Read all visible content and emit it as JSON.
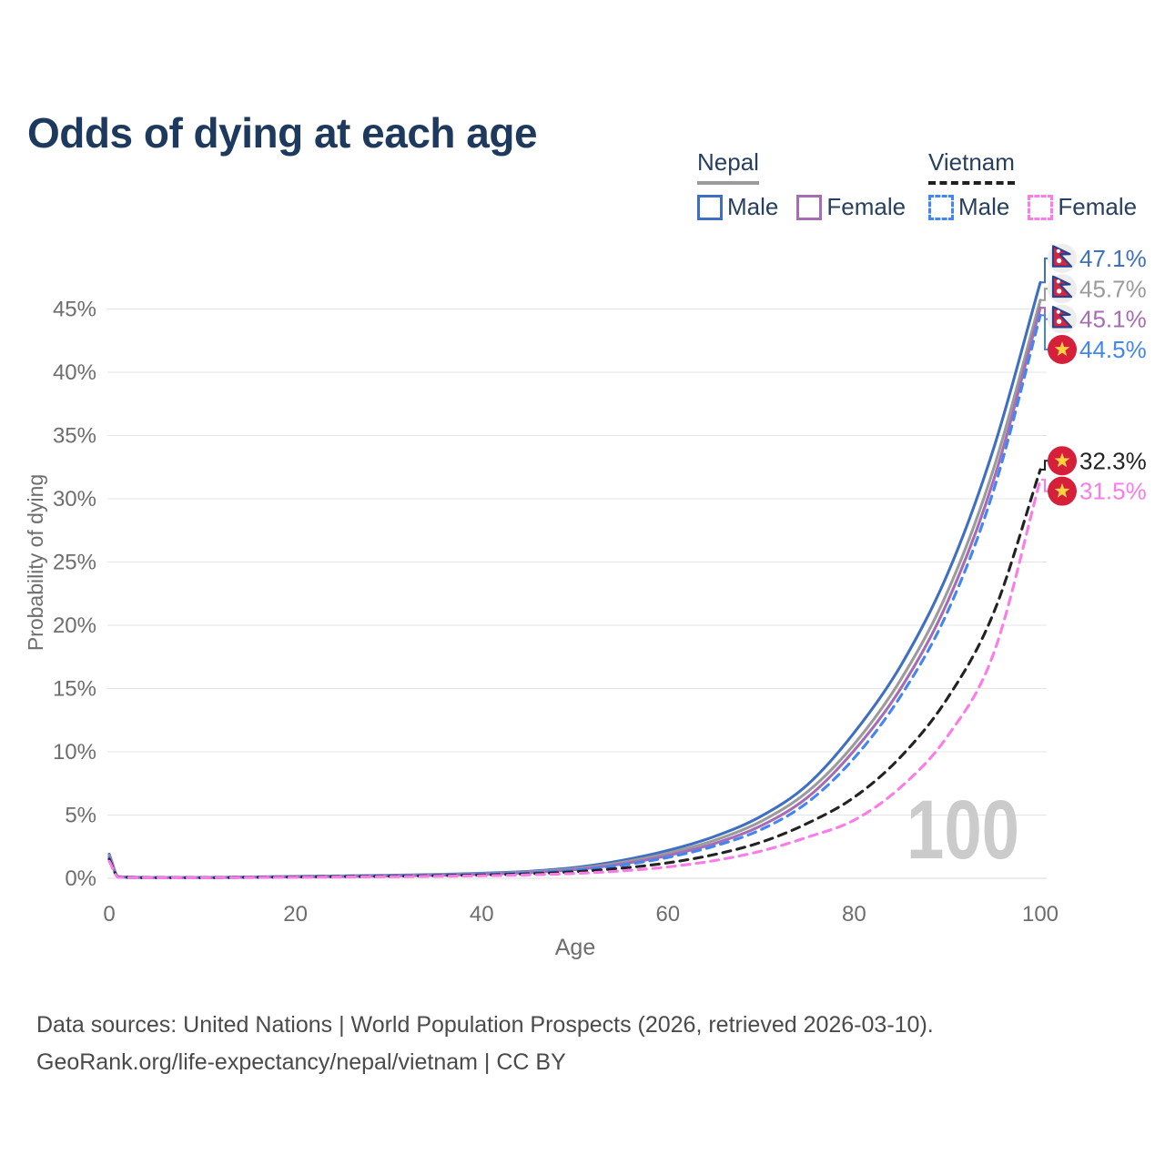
{
  "page": {
    "title": "Odds of dying at each age"
  },
  "legend": {
    "nepal": {
      "label": "Nepal",
      "male": "Male",
      "female": "Female"
    },
    "vietnam": {
      "label": "Vietnam",
      "male": "Male",
      "female": "Female"
    }
  },
  "colors": {
    "title": "#1d3a5e",
    "axis_text": "#6e6e6e",
    "grid": "#e4e4e4",
    "axis_line": "#d9d9d9",
    "watermark": "#cbcbcb",
    "nepal_male": "#3e6fc1",
    "nepal_total": "#9b9b9b",
    "nepal_female": "#a76db4",
    "vietnam_male": "#4285f5",
    "vietnam_total": "#222222",
    "vietnam_female": "#fb7be7",
    "nepal_flag_bg": "#ededed",
    "nepal_flag_crimson": "#d8243c",
    "nepal_flag_blue": "#26418f",
    "vietnam_flag_red": "#d6203b",
    "vietnam_flag_star": "#ffd23f"
  },
  "chart_data": {
    "type": "line",
    "title": "Odds of dying at each age",
    "xlabel": "Age",
    "ylabel": "Probability of dying",
    "xlim": [
      0,
      100
    ],
    "ylim_pct": [
      0,
      49
    ],
    "x_ticks": [
      0,
      20,
      40,
      60,
      80,
      100
    ],
    "y_tick_labels": [
      "0%",
      "5%",
      "10%",
      "15%",
      "20%",
      "25%",
      "30%",
      "35%",
      "40%",
      "45%"
    ],
    "grid": "horizontal-only",
    "legend_position": "top-right",
    "watermark": "100",
    "ages": [
      0,
      1,
      5,
      10,
      15,
      20,
      25,
      30,
      35,
      40,
      45,
      50,
      55,
      60,
      65,
      70,
      75,
      80,
      85,
      90,
      95,
      100
    ],
    "series": [
      {
        "id": "nepal-male",
        "name": "Nepal Male",
        "country": "Nepal",
        "flag": "nepal",
        "dash": false,
        "color": "#3e6fc1",
        "end_label": "47.1%",
        "label_at_pct": 49.0,
        "values_pct": [
          1.9,
          0.12,
          0.07,
          0.07,
          0.1,
          0.15,
          0.19,
          0.24,
          0.3,
          0.4,
          0.55,
          0.85,
          1.4,
          2.2,
          3.3,
          4.9,
          7.4,
          11.5,
          16.8,
          24.0,
          34.0,
          47.1
        ]
      },
      {
        "id": "nepal-total",
        "name": "Nepal",
        "country": "Nepal",
        "flag": "nepal",
        "dash": false,
        "color": "#9b9b9b",
        "end_label": "45.7%",
        "label_at_pct": 46.6,
        "values_pct": [
          1.8,
          0.11,
          0.06,
          0.06,
          0.09,
          0.13,
          0.17,
          0.21,
          0.27,
          0.36,
          0.5,
          0.76,
          1.25,
          1.98,
          3.0,
          4.5,
          6.85,
          10.6,
          15.7,
          22.6,
          32.4,
          45.7
        ]
      },
      {
        "id": "nepal-female",
        "name": "Nepal Female",
        "country": "Nepal",
        "flag": "nepal",
        "dash": false,
        "color": "#a76db4",
        "end_label": "45.1%",
        "label_at_pct": 44.2,
        "values_pct": [
          1.7,
          0.1,
          0.06,
          0.06,
          0.08,
          0.12,
          0.15,
          0.19,
          0.24,
          0.32,
          0.45,
          0.68,
          1.12,
          1.8,
          2.75,
          4.15,
          6.4,
          10.1,
          15.0,
          21.8,
          31.5,
          45.1
        ]
      },
      {
        "id": "vietnam-male",
        "name": "Vietnam Male",
        "country": "Vietnam",
        "flag": "vietnam",
        "dash": true,
        "color": "#4285f5",
        "end_label": "44.5%",
        "label_at_pct": 41.8,
        "values_pct": [
          1.6,
          0.1,
          0.05,
          0.05,
          0.08,
          0.12,
          0.15,
          0.19,
          0.24,
          0.31,
          0.43,
          0.64,
          1.03,
          1.65,
          2.55,
          3.85,
          6.0,
          9.5,
          14.4,
          21.0,
          30.7,
          44.5
        ]
      },
      {
        "id": "vietnam-total",
        "name": "Vietnam",
        "country": "Vietnam",
        "flag": "vietnam",
        "dash": true,
        "color": "#222222",
        "end_label": "32.3%",
        "label_at_pct": 33.0,
        "values_pct": [
          1.5,
          0.09,
          0.05,
          0.05,
          0.07,
          0.1,
          0.13,
          0.16,
          0.2,
          0.26,
          0.35,
          0.52,
          0.8,
          1.22,
          1.88,
          2.85,
          4.35,
          6.4,
          9.6,
          14.2,
          21.0,
          32.3
        ]
      },
      {
        "id": "vietnam-female",
        "name": "Vietnam Female",
        "country": "Vietnam",
        "flag": "vietnam",
        "dash": true,
        "color": "#fb7be7",
        "end_label": "31.5%",
        "label_at_pct": 30.6,
        "values_pct": [
          1.35,
          0.08,
          0.04,
          0.04,
          0.06,
          0.08,
          0.1,
          0.13,
          0.16,
          0.2,
          0.27,
          0.38,
          0.58,
          0.9,
          1.4,
          2.15,
          3.25,
          4.6,
          7.2,
          11.2,
          17.8,
          31.5
        ]
      }
    ]
  },
  "footer": {
    "line1": "Data sources: United Nations | World Population Prospects (2026, retrieved 2026-03-10).",
    "line2": "GeoRank.org/life-expectancy/nepal/vietnam | CC BY"
  }
}
